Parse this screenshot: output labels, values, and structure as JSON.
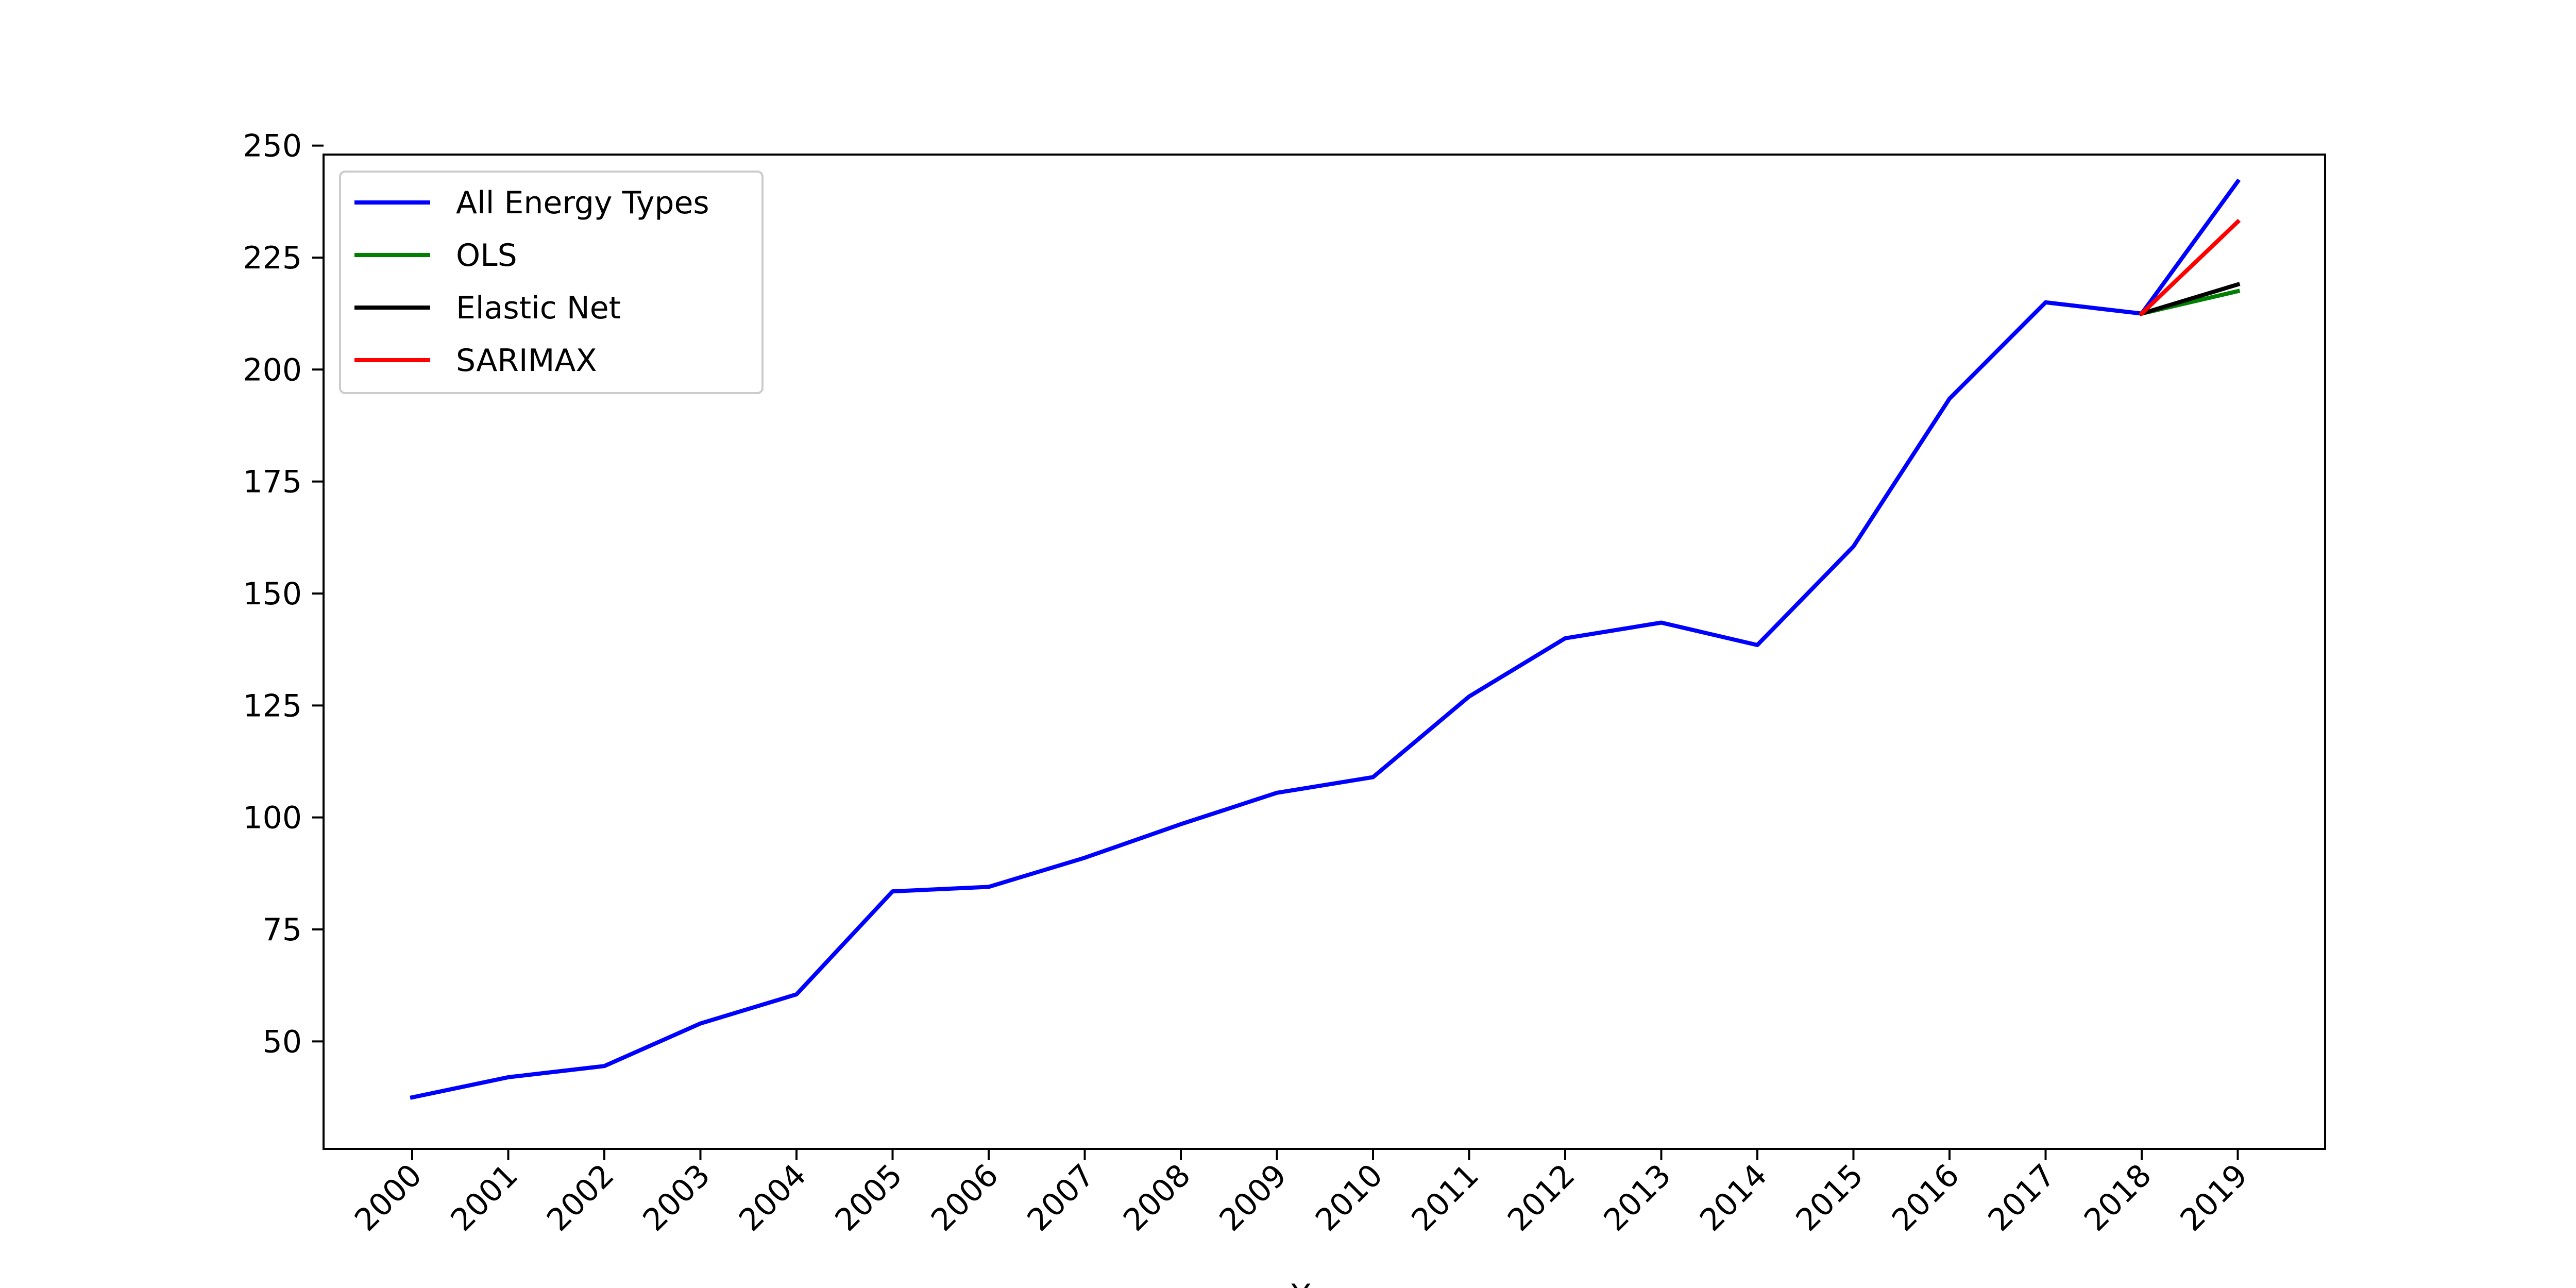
{
  "chart_data": {
    "type": "line",
    "title": "",
    "xlabel": "Year",
    "ylabel": "",
    "x": [
      "2000",
      "2001",
      "2002",
      "2003",
      "2004",
      "2005",
      "2006",
      "2007",
      "2008",
      "2009",
      "2010",
      "2011",
      "2012",
      "2013",
      "2014",
      "2015",
      "2016",
      "2017",
      "2018",
      "2019"
    ],
    "yticks": [
      50,
      75,
      100,
      125,
      150,
      175,
      200,
      225,
      250
    ],
    "ylim": [
      26,
      248
    ],
    "grid": false,
    "legend_position": "top-left",
    "series": [
      {
        "name": "All Energy Types",
        "color": "#0000ff",
        "x": [
          "2000",
          "2001",
          "2002",
          "2003",
          "2004",
          "2005",
          "2006",
          "2007",
          "2008",
          "2009",
          "2010",
          "2011",
          "2012",
          "2013",
          "2014",
          "2015",
          "2016",
          "2017",
          "2018",
          "2019"
        ],
        "values": [
          37.5,
          42,
          44.5,
          54,
          60.5,
          83.5,
          84.5,
          91,
          98.5,
          105.5,
          109,
          127,
          140,
          143.5,
          138.5,
          160.5,
          193.5,
          215,
          212.5,
          242
        ]
      },
      {
        "name": "OLS",
        "color": "#008000",
        "x": [
          "2018",
          "2019"
        ],
        "values": [
          212.5,
          217.5
        ]
      },
      {
        "name": "Elastic Net",
        "color": "#000000",
        "x": [
          "2018",
          "2019"
        ],
        "values": [
          212.5,
          219
        ]
      },
      {
        "name": "SARIMAX",
        "color": "#ff0000",
        "x": [
          "2018",
          "2019"
        ],
        "values": [
          212.5,
          233
        ]
      }
    ]
  }
}
